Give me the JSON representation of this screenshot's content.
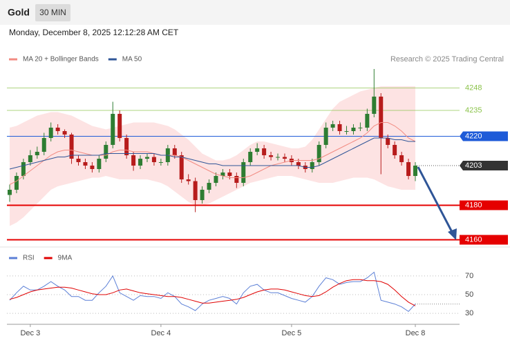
{
  "header": {
    "title": "Gold",
    "timeframe": "30 MIN"
  },
  "timestamp": "Monday, December 8, 2025 12:12:28 AM CET",
  "chart_data": [
    {
      "type": "candlestick",
      "credit": "Research © 2025 Trading Central",
      "categories": [
        null,
        null,
        null,
        "Dec 3",
        null,
        null,
        null,
        null,
        null,
        null,
        null,
        null,
        null,
        null,
        null,
        null,
        null,
        null,
        null,
        null,
        null,
        null,
        "Dec 4",
        null,
        null,
        null,
        null,
        null,
        null,
        null,
        null,
        null,
        null,
        null,
        null,
        null,
        null,
        null,
        null,
        null,
        null,
        "Dec 5",
        null,
        null,
        null,
        null,
        null,
        null,
        null,
        null,
        null,
        null,
        null,
        null,
        null,
        null,
        null,
        null,
        null,
        "Dec 8"
      ],
      "open": [
        4186,
        4189,
        4197,
        4205,
        4209,
        4211,
        4219,
        4225,
        4223,
        4221,
        4207,
        4205,
        4203,
        4201,
        4207,
        4215,
        4233,
        4219,
        4209,
        4203,
        4207,
        4208,
        4205,
        4205,
        4213,
        4209,
        4195,
        4194,
        4183,
        4189,
        4193,
        4197,
        4199,
        4197,
        4193,
        4205,
        4211,
        4213,
        4209,
        4208,
        4208,
        4207,
        4205,
        4203,
        4201,
        4205,
        4215,
        4225,
        4227,
        4223,
        4223,
        4225,
        4225,
        4233,
        4243,
        4219,
        4215,
        4209,
        4205,
        4197
      ],
      "high": [
        4192,
        4199,
        4207,
        4212,
        4214,
        4222,
        4228,
        4227,
        4224,
        4222,
        4209,
        4207,
        4205,
        4209,
        4217,
        4240,
        4235,
        4221,
        4211,
        4209,
        4210,
        4210,
        4207,
        4215,
        4215,
        4211,
        4198,
        4196,
        4191,
        4195,
        4199,
        4201,
        4201,
        4199,
        4207,
        4213,
        4216,
        4215,
        4211,
        4210,
        4210,
        4209,
        4207,
        4205,
        4207,
        4217,
        4228,
        4229,
        4229,
        4226,
        4227,
        4228,
        4236,
        4259,
        4245,
        4221,
        4217,
        4211,
        4207,
        4205
      ],
      "low": [
        4182,
        4187,
        4195,
        4203,
        4207,
        4209,
        4217,
        4221,
        4219,
        4204,
        4203,
        4201,
        4199,
        4199,
        4205,
        4213,
        4217,
        4207,
        4200,
        4201,
        4205,
        4203,
        4203,
        4203,
        4207,
        4193,
        4192,
        4176,
        4181,
        4187,
        4191,
        4195,
        4195,
        4190,
        4191,
        4203,
        4209,
        4207,
        4206,
        4206,
        4205,
        4203,
        4201,
        4199,
        4199,
        4203,
        4213,
        4223,
        4221,
        4221,
        4221,
        4223,
        4223,
        4231,
        4198,
        4213,
        4207,
        4203,
        4195,
        4194
      ],
      "close": [
        4189,
        4197,
        4205,
        4209,
        4211,
        4219,
        4225,
        4223,
        4221,
        4207,
        4205,
        4203,
        4201,
        4207,
        4215,
        4233,
        4219,
        4209,
        4203,
        4207,
        4208,
        4205,
        4205,
        4213,
        4209,
        4195,
        4194,
        4183,
        4189,
        4193,
        4197,
        4199,
        4197,
        4193,
        4205,
        4211,
        4213,
        4209,
        4208,
        4208,
        4207,
        4205,
        4203,
        4201,
        4205,
        4215,
        4225,
        4227,
        4223,
        4223,
        4225,
        4225,
        4233,
        4243,
        4219,
        4215,
        4209,
        4205,
        4197,
        4203
      ],
      "up_color": "#2e7d32",
      "down_color": "#b71c1c",
      "ylim": [
        4157,
        4259
      ],
      "series": [
        {
          "name": "MA 20 + Bollinger Bands",
          "color": "#f28b82",
          "band_color": "#fde3e3",
          "values": [
            4192,
            4194,
            4197,
            4200,
            4203,
            4206,
            4209,
            4211,
            4212,
            4212,
            4211,
            4210,
            4209,
            4209,
            4209,
            4211,
            4212,
            4212,
            4211,
            4211,
            4211,
            4210,
            4209,
            4209,
            4209,
            4208,
            4206,
            4204,
            4202,
            4200,
            4198,
            4197,
            4196,
            4196,
            4196,
            4197,
            4199,
            4201,
            4203,
            4204,
            4205,
            4206,
            4206,
            4206,
            4206,
            4207,
            4209,
            4211,
            4213,
            4215,
            4217,
            4219,
            4222,
            4226,
            4228,
            4228,
            4226,
            4223,
            4219,
            4217
          ],
          "upper": [
            4225,
            4226,
            4228,
            4230,
            4232,
            4233,
            4234,
            4234,
            4233,
            4232,
            4230,
            4228,
            4226,
            4225,
            4224,
            4225,
            4226,
            4227,
            4228,
            4228,
            4228,
            4228,
            4227,
            4226,
            4224,
            4221,
            4218,
            4214,
            4210,
            4208,
            4206,
            4206,
            4207,
            4209,
            4212,
            4215,
            4217,
            4217,
            4216,
            4215,
            4214,
            4213,
            4213,
            4214,
            4218,
            4224,
            4230,
            4236,
            4240,
            4242,
            4244,
            4246,
            4247,
            4248,
            4249,
            4249,
            4249,
            4249,
            4249,
            4249
          ],
          "lower": [
            4168,
            4170,
            4173,
            4177,
            4181,
            4185,
            4189,
            4191,
            4192,
            4193,
            4194,
            4195,
            4196,
            4196,
            4197,
            4196,
            4195,
            4195,
            4195,
            4195,
            4195,
            4194,
            4193,
            4191,
            4188,
            4185,
            4182,
            4180,
            4180,
            4181,
            4183,
            4185,
            4187,
            4189,
            4191,
            4193,
            4194,
            4195,
            4196,
            4197,
            4197,
            4197,
            4196,
            4195,
            4194,
            4193,
            4193,
            4193,
            4194,
            4195,
            4196,
            4196,
            4196,
            4195,
            4193,
            4191,
            4190,
            4189,
            4189,
            4189
          ]
        },
        {
          "name": "MA 50",
          "color": "#2f5597",
          "values": [
            4201,
            4202,
            4203,
            4204,
            4205,
            4206,
            4207,
            4208,
            4208,
            4209,
            4209,
            4209,
            4209,
            4209,
            4210,
            4210,
            4210,
            4210,
            4210,
            4210,
            4210,
            4210,
            4209,
            4209,
            4208,
            4208,
            4207,
            4206,
            4205,
            4204,
            4204,
            4203,
            4203,
            4203,
            4203,
            4203,
            4203,
            4203,
            4203,
            4203,
            4203,
            4203,
            4203,
            4202,
            4202,
            4203,
            4205,
            4207,
            4209,
            4211,
            4213,
            4215,
            4217,
            4219,
            4219,
            4219,
            4218,
            4218,
            4217,
            4217
          ]
        }
      ],
      "levels": [
        {
          "value": 4248,
          "color": "#8bc34a",
          "style": "text"
        },
        {
          "value": 4235,
          "color": "#8bc34a",
          "style": "text"
        },
        {
          "value": 4220,
          "color": "#1e5bd8",
          "style": "box"
        },
        {
          "value": 4203,
          "color": "#333333",
          "style": "dotted"
        },
        {
          "value": 4180,
          "color": "#e50000",
          "style": "thick"
        },
        {
          "value": 4160,
          "color": "#e50000",
          "style": "thick"
        }
      ]
    },
    {
      "type": "line",
      "ylim": [
        22,
        81
      ],
      "yticks": [
        30,
        50,
        70
      ],
      "series": [
        {
          "name": "RSI",
          "color": "#5b7fd6",
          "values": [
            44,
            52,
            59,
            55,
            55,
            59,
            64,
            59,
            55,
            48,
            48,
            44,
            44,
            52,
            59,
            70,
            52,
            48,
            44,
            49,
            48,
            48,
            46,
            52,
            48,
            40,
            37,
            33,
            40,
            44,
            46,
            48,
            46,
            40,
            52,
            59,
            61,
            55,
            52,
            52,
            49,
            46,
            44,
            42,
            48,
            59,
            68,
            66,
            61,
            63,
            64,
            64,
            68,
            74,
            44,
            42,
            40,
            37,
            32,
            40
          ]
        },
        {
          "name": "9MA",
          "color": "#e00000",
          "values": [
            45,
            47,
            50,
            53,
            55,
            56,
            57,
            58,
            58,
            57,
            55,
            53,
            51,
            50,
            50,
            52,
            55,
            56,
            54,
            52,
            51,
            50,
            49,
            48,
            48,
            47,
            45,
            43,
            41,
            41,
            42,
            43,
            44,
            45,
            47,
            50,
            53,
            55,
            56,
            56,
            55,
            53,
            51,
            49,
            48,
            49,
            53,
            58,
            62,
            65,
            66,
            66,
            65,
            65,
            64,
            61,
            55,
            48,
            42,
            38
          ]
        }
      ]
    }
  ]
}
